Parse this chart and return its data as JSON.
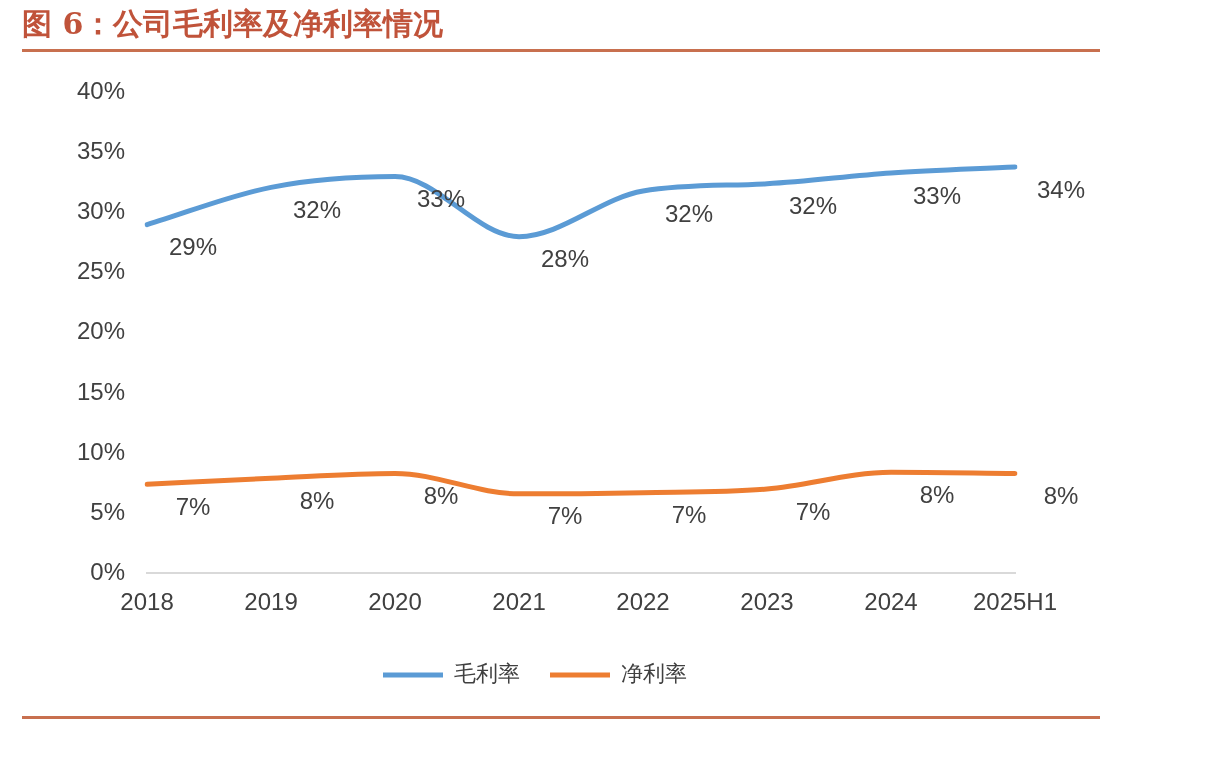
{
  "chart_data": {
    "type": "line",
    "title": "图 6：公司毛利率及净利率情况",
    "categories": [
      "2018",
      "2019",
      "2020",
      "2021",
      "2022",
      "2023",
      "2024",
      "2025H1"
    ],
    "series": [
      {
        "name": "毛利率",
        "color": "#5b9bd5",
        "values": [
          29.0,
          32.1,
          33.0,
          28.0,
          31.8,
          32.4,
          33.3,
          33.8
        ],
        "value_labels": [
          "29%",
          "32%",
          "33%",
          "28%",
          "32%",
          "32%",
          "33%",
          "34%"
        ]
      },
      {
        "name": "净利率",
        "color": "#ed7d31",
        "values": [
          7.4,
          7.9,
          8.3,
          6.6,
          6.7,
          7.0,
          8.4,
          8.3
        ],
        "value_labels": [
          "7%",
          "8%",
          "8%",
          "7%",
          "7%",
          "7%",
          "8%",
          "8%"
        ]
      }
    ],
    "ylim": [
      0,
      40
    ],
    "yticks": [
      {
        "value": 0,
        "label": "0%"
      },
      {
        "value": 5,
        "label": "5%"
      },
      {
        "value": 10,
        "label": "10%"
      },
      {
        "value": 15,
        "label": "15%"
      },
      {
        "value": 20,
        "label": "20%"
      },
      {
        "value": 25,
        "label": "25%"
      },
      {
        "value": 30,
        "label": "30%"
      },
      {
        "value": 35,
        "label": "35%"
      },
      {
        "value": 40,
        "label": "40%"
      }
    ],
    "grid": false,
    "legend": "bottom",
    "marker": "none",
    "line_style": "solid"
  }
}
